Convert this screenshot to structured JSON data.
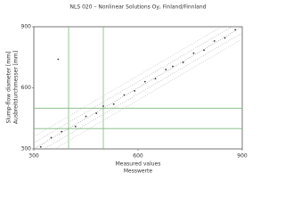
{
  "chart_data": {
    "type": "scatter",
    "title": "NLS 020 – Nonlinear Solutions Oy, Finland/Finnland",
    "xlabel": "Measured values",
    "xlabel2": "Messwerte",
    "ylabel": "Slump-flow diameter [mm]",
    "ylabel2": "Ausbreitdurchmesser [mm]",
    "xlim": [
      300,
      900
    ],
    "ylim": [
      300,
      900
    ],
    "xticks": [
      300,
      600,
      900
    ],
    "yticks": [
      300,
      600,
      900
    ],
    "ref_x": [
      400,
      500
    ],
    "ref_y": [
      400,
      500
    ],
    "ref_color": "#7fb87f",
    "series": [
      {
        "color": "#333333",
        "x": [
          320,
          350,
          370,
          380,
          420,
          450,
          480,
          500,
          530,
          560,
          590,
          620,
          650,
          680,
          700,
          730,
          760,
          790,
          820,
          850,
          880
        ],
        "values": [
          310,
          355,
          740,
          385,
          410,
          460,
          475,
          510,
          520,
          565,
          585,
          630,
          645,
          690,
          705,
          725,
          770,
          785,
          830,
          845,
          885
        ]
      }
    ],
    "lines": [
      {
        "color": "#888888",
        "x": [
          300,
          900
        ],
        "values": [
          300,
          900
        ]
      },
      {
        "color": "#aaaaaa",
        "x": [
          300,
          900
        ],
        "values": [
          330,
          930
        ]
      },
      {
        "color": "#aaaaaa",
        "x": [
          300,
          900
        ],
        "values": [
          270,
          870
        ]
      },
      {
        "color": "#bbbbbb",
        "x": [
          300,
          900
        ],
        "values": [
          360,
          960
        ]
      },
      {
        "color": "#bbbbbb",
        "x": [
          300,
          900
        ],
        "values": [
          240,
          840
        ]
      }
    ]
  }
}
